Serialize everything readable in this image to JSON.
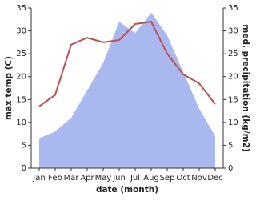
{
  "chart_data": {
    "type": "line-area",
    "x_label": "date (month)",
    "y_label": "max temp (C)",
    "y2_label": "med. precipitation (kg/m2)",
    "categories": [
      "Jan",
      "Feb",
      "Mar",
      "Apr",
      "May",
      "Jun",
      "Jul",
      "Aug",
      "Sep",
      "Oct",
      "Nov",
      "Dec"
    ],
    "series": [
      {
        "name": "max temp",
        "color": "#c0504d",
        "values": [
          13.5,
          16,
          27,
          28.5,
          27.5,
          28,
          31.5,
          32,
          25,
          20.5,
          18.5,
          14
        ]
      },
      {
        "name": "med. precipitation",
        "color": "#aab8f0",
        "axis": "y2",
        "values": [
          6.5,
          8,
          11,
          17,
          23,
          32,
          29.5,
          34,
          29,
          21,
          13,
          7
        ]
      }
    ],
    "ylim": [
      0,
      35
    ],
    "yticks": [
      0,
      5,
      10,
      15,
      20,
      25,
      30,
      35
    ],
    "y2lim": [
      0,
      35
    ],
    "y2ticks": [
      0,
      5,
      10,
      15,
      20,
      25,
      30,
      35
    ]
  }
}
